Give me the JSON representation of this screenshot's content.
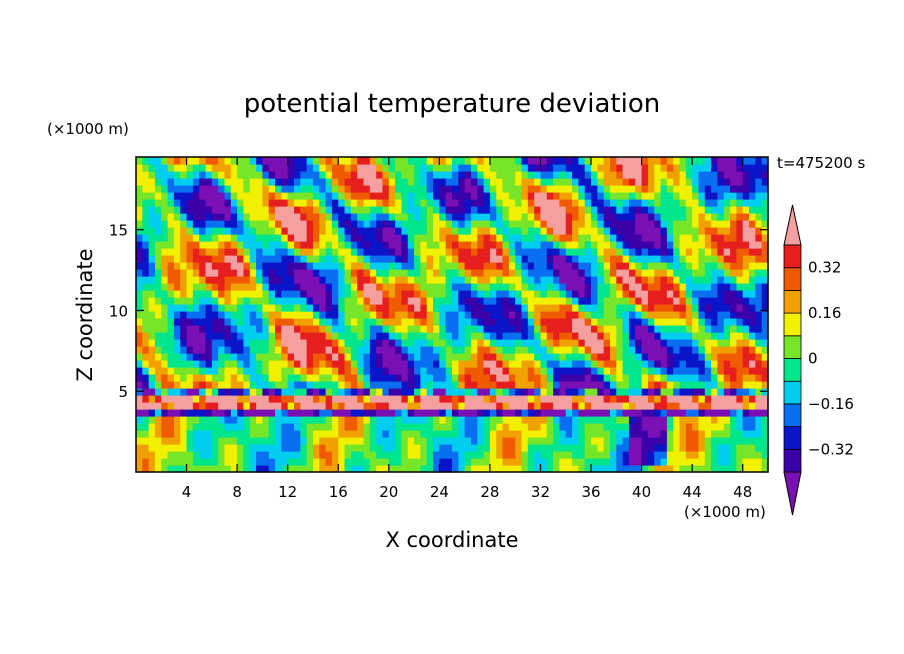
{
  "chart_data": {
    "type": "heatmap",
    "title": "potential temperature deviation",
    "time_label": "t=475200 s",
    "xlabel": "X coordinate",
    "ylabel": "Z coordinate",
    "x_unit": "(×1000 m)",
    "y_unit": "(×1000 m)",
    "xlim": [
      0,
      50
    ],
    "ylim": [
      0,
      19.5
    ],
    "x_ticks": [
      4,
      8,
      12,
      16,
      20,
      24,
      28,
      32,
      36,
      40,
      44,
      48
    ],
    "y_ticks": [
      5,
      10,
      15
    ],
    "grid": false,
    "colorbar": {
      "levels": [
        -0.4,
        -0.32,
        -0.24,
        -0.16,
        -0.08,
        0,
        0.08,
        0.16,
        0.24,
        0.32,
        0.4
      ],
      "colors": [
        "#7a0fb4",
        "#3c00a8",
        "#0a14c8",
        "#0a6ef0",
        "#00cdf0",
        "#00e68c",
        "#78e628",
        "#f0f000",
        "#f0a000",
        "#f05a00",
        "#e61e1e",
        "#f5a0a0"
      ],
      "tick_labels": [
        "0.32",
        "0.16",
        "0",
        "−0.16",
        "−0.32"
      ],
      "tick_values": [
        0.32,
        0.16,
        0,
        -0.16,
        -0.32
      ],
      "extend": "both"
    }
  }
}
